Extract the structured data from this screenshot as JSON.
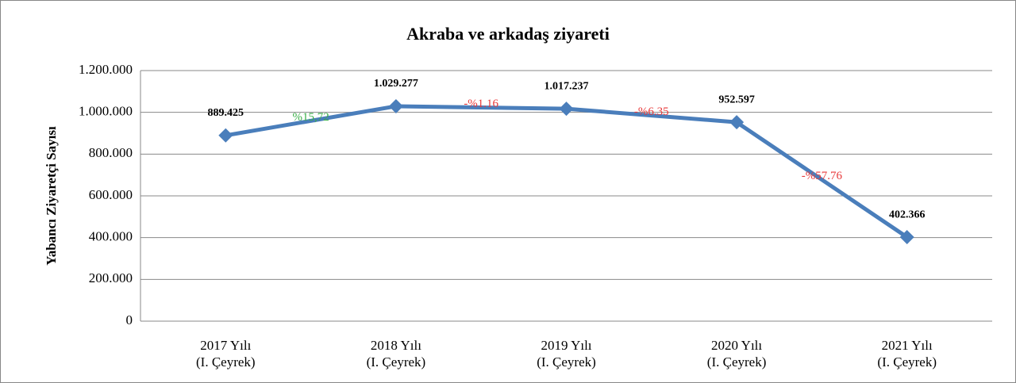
{
  "chart_data": {
    "type": "line",
    "title": "Akraba ve arkadaş ziyareti",
    "y_label": "Yabancı Ziyaretçi Sayısı",
    "categories": [
      [
        "2017 Yılı",
        "(I. Çeyrek)"
      ],
      [
        "2018 Yılı",
        "(I. Çeyrek)"
      ],
      [
        "2019 Yılı",
        "(I. Çeyrek)"
      ],
      [
        "2020 Yılı",
        "(I. Çeyrek)"
      ],
      [
        "2021 Yılı",
        "(I. Çeyrek)"
      ]
    ],
    "series": [
      {
        "name": "Akraba ve arkadaş ziyareti",
        "color": "#4a7ebb",
        "values": [
          889425,
          1029277,
          1017237,
          952597,
          402366
        ],
        "value_labels": [
          "889.425",
          "1.029.277",
          "1.017.237",
          "952.597",
          "402.366"
        ]
      }
    ],
    "annotations": [
      {
        "text": "%15,72",
        "color": "#3cb04a"
      },
      {
        "text": "-%1.16",
        "color": "#e8393a"
      },
      {
        "text": "-%6.35",
        "color": "#e8393a"
      },
      {
        "text": "-%57.76",
        "color": "#e8393a"
      }
    ],
    "ylim": [
      0,
      1200000
    ],
    "yticks": [
      0,
      {
        "value": 200000,
        "label": "200.000"
      },
      {
        "value": 400000,
        "label": "400.000"
      },
      {
        "value": 600000,
        "label": "600.000"
      },
      {
        "value": 800000,
        "label": "800.000"
      },
      {
        "value": 1000000,
        "label": "1.000.000"
      },
      {
        "value": 1200000,
        "label": "1.200.000"
      }
    ],
    "grid": true
  }
}
